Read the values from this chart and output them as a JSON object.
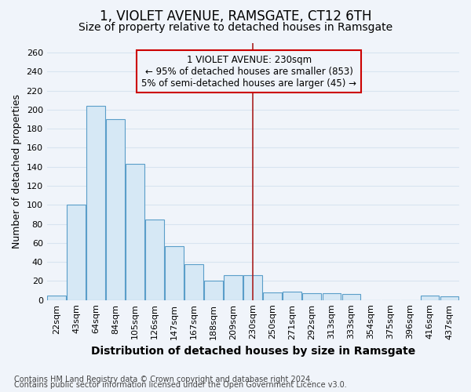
{
  "title": "1, VIOLET AVENUE, RAMSGATE, CT12 6TH",
  "subtitle": "Size of property relative to detached houses in Ramsgate",
  "xlabel": "Distribution of detached houses by size in Ramsgate",
  "ylabel": "Number of detached properties",
  "footnote1": "Contains HM Land Registry data © Crown copyright and database right 2024.",
  "footnote2": "Contains public sector information licensed under the Open Government Licence v3.0.",
  "annotation_line1": "1 VIOLET AVENUE: 230sqm",
  "annotation_line2": "← 95% of detached houses are smaller (853)",
  "annotation_line3": "5% of semi-detached houses are larger (45) →",
  "categories": [
    "22sqm",
    "43sqm",
    "64sqm",
    "84sqm",
    "105sqm",
    "126sqm",
    "147sqm",
    "167sqm",
    "188sqm",
    "209sqm",
    "230sqm",
    "250sqm",
    "271sqm",
    "292sqm",
    "313sqm",
    "333sqm",
    "354sqm",
    "375sqm",
    "396sqm",
    "416sqm",
    "437sqm"
  ],
  "values": [
    5,
    100,
    204,
    190,
    143,
    85,
    57,
    38,
    20,
    26,
    26,
    8,
    9,
    7,
    7,
    6,
    0,
    0,
    0,
    5,
    4
  ],
  "bar_fill_color": "#d6e8f5",
  "bar_edge_color": "#5a9ec9",
  "marker_color": "#aa2222",
  "marker_index": 10,
  "ylim": [
    0,
    270
  ],
  "yticks": [
    0,
    20,
    40,
    60,
    80,
    100,
    120,
    140,
    160,
    180,
    200,
    220,
    240,
    260
  ],
  "annotation_box_color": "#cc0000",
  "bg_color": "#f0f4fa",
  "grid_color": "#d8e4f0",
  "title_fontsize": 12,
  "subtitle_fontsize": 10,
  "xlabel_fontsize": 10,
  "ylabel_fontsize": 9,
  "tick_fontsize": 8,
  "annotation_fontsize": 8.5,
  "footnote_fontsize": 7
}
